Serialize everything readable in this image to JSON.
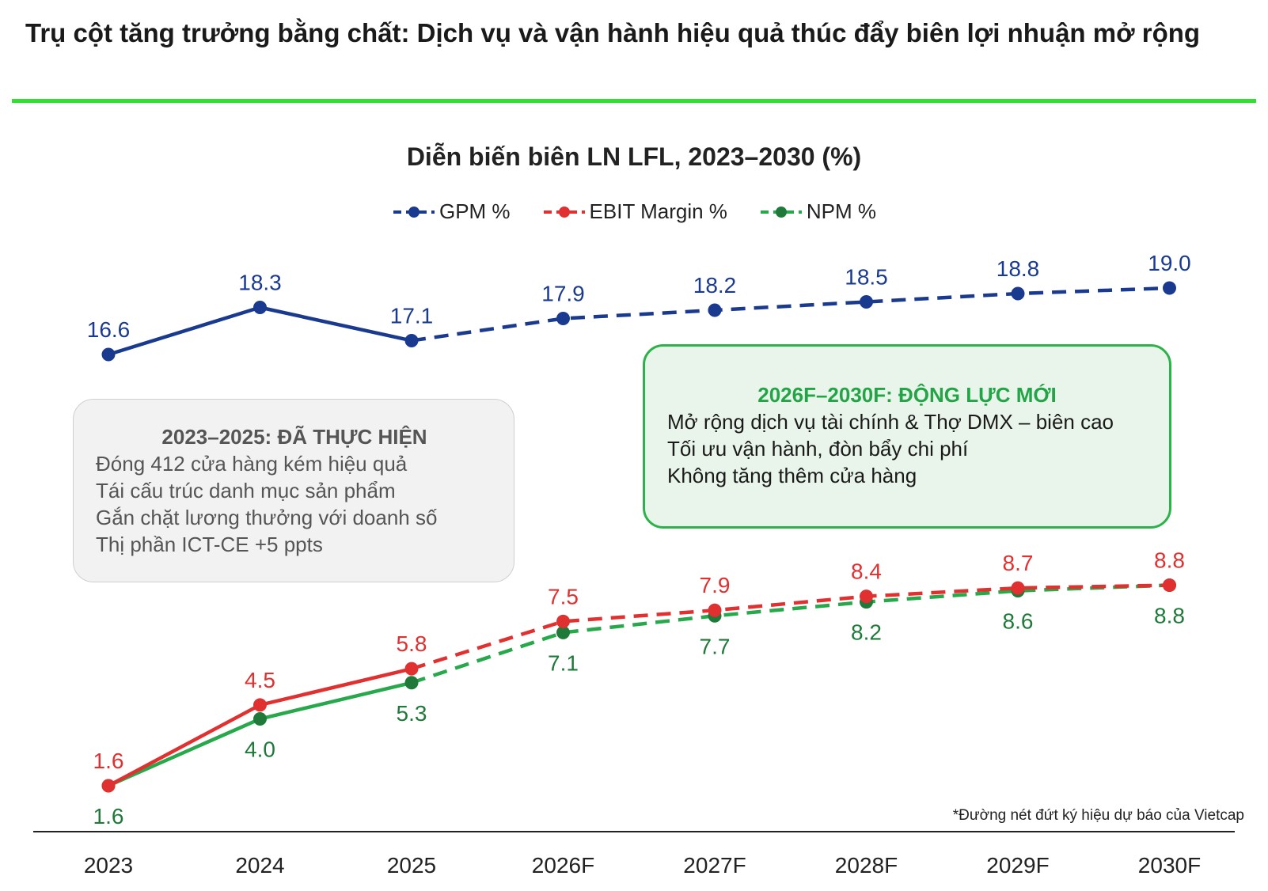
{
  "header": {
    "title": "Trụ cột tăng trưởng bằng chất: Dịch vụ và vận hành hiệu quả thúc đẩy biên lợi nhuận mở rộng"
  },
  "chart_data": {
    "type": "line",
    "title": "Diễn biến biên LN LFL, 2023–2030 (%)",
    "categories": [
      "2023",
      "2024",
      "2025",
      "2026F",
      "2027F",
      "2028F",
      "2029F",
      "2030F"
    ],
    "actual_through_index": 2,
    "legend_position": "top-center",
    "series": [
      {
        "name": "GPM %",
        "color": "#1a3a8f",
        "values": [
          16.6,
          18.3,
          17.1,
          17.9,
          18.2,
          18.5,
          18.8,
          19.0
        ],
        "labels": [
          "16.6",
          "18.3",
          "17.1",
          "17.9",
          "18.2",
          "18.5",
          "18.8",
          "19.0"
        ],
        "label_position": "above"
      },
      {
        "name": "EBIT Margin %",
        "color": "#e03030",
        "values": [
          1.6,
          4.5,
          5.8,
          7.5,
          7.9,
          8.4,
          8.7,
          8.8
        ],
        "labels": [
          "1.6",
          "4.5",
          "5.8",
          "7.5",
          "7.9",
          "8.4",
          "8.7",
          "8.8"
        ],
        "label_position": "above"
      },
      {
        "name": "NPM %",
        "color": "#1f7a3a",
        "line_color": "#27a84a",
        "values": [
          1.6,
          4.0,
          5.3,
          7.1,
          7.7,
          8.2,
          8.6,
          8.8
        ],
        "labels": [
          "1.6",
          "4.0",
          "5.3",
          "7.1",
          "7.7",
          "8.2",
          "8.6",
          "8.8"
        ],
        "label_position": "below"
      }
    ],
    "grid": false
  },
  "callouts": {
    "realized": {
      "heading": "2023–2025: ĐÃ THỰC HIỆN",
      "lines": [
        "Đóng 412 cửa hàng kém hiệu quả",
        "Tái cấu trúc danh mục sản phẩm",
        "Gắn chặt lương thưởng với doanh số",
        "Thị phần ICT-CE +5 ppts"
      ]
    },
    "forecast": {
      "heading": "2026F–2030F: ĐỘNG LỰC MỚI",
      "lines": [
        "Mở rộng dịch vụ tài chính & Thợ DMX – biên cao",
        "Tối ưu vận hành, đòn bẩy chi phí",
        "Không tăng thêm cửa hàng"
      ]
    }
  },
  "footnote": "*Đường nét đứt ký hiệu dự báo của Vietcap"
}
